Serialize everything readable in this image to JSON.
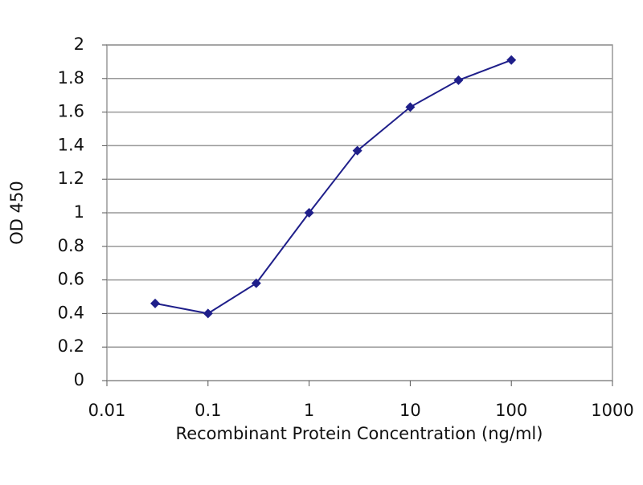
{
  "chart_data": {
    "type": "line",
    "x_label": "Recombinant Protein Concentration (ng/ml)",
    "y_label": "OD 450",
    "x": [
      0.03,
      0.1,
      0.3,
      1,
      3,
      10,
      30,
      100
    ],
    "series": [
      {
        "color": "#1f1f8a",
        "values": [
          0.46,
          0.4,
          0.58,
          1.0,
          1.37,
          1.63,
          1.79,
          1.91
        ]
      }
    ],
    "xscale": "log",
    "xlim": [
      0.01,
      1000
    ],
    "xticks": [
      0.01,
      0.1,
      1,
      10,
      100,
      1000
    ],
    "ylim": [
      0,
      2
    ],
    "yticks": [
      0,
      0.2,
      0.4,
      0.6,
      0.8,
      1,
      1.2,
      1.4,
      1.6,
      1.8,
      2
    ],
    "grid": true
  }
}
